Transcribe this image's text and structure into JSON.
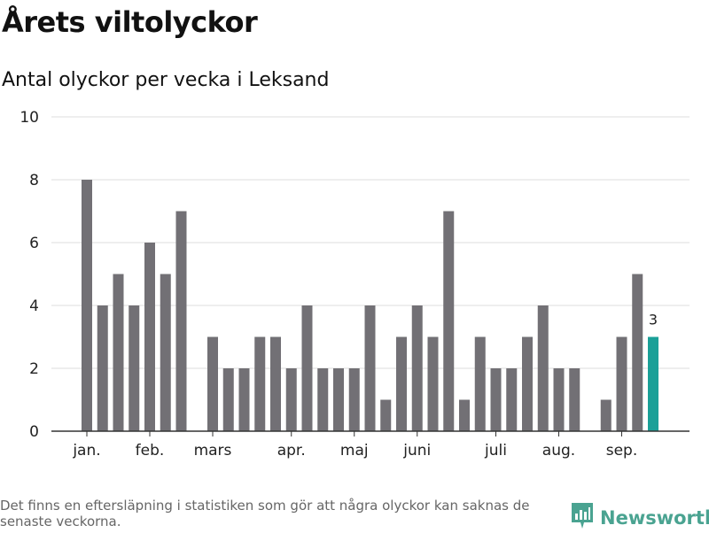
{
  "header": {
    "title": "Årets viltolyckor",
    "subtitle": "Antal olyckor per vecka i Leksand"
  },
  "footer": {
    "note": "Det finns en eftersläpning i statistiken som gör att några olyckor kan saknas de senaste veckorna.",
    "brand": "Newsworthy",
    "brand_icon": "newsworthy-logo-icon"
  },
  "colors": {
    "bar": "#727075",
    "highlight": "#1ba098",
    "grid": "#dddddd",
    "axis": "#333333",
    "brand": "#4aa391"
  },
  "chart_data": {
    "type": "bar",
    "title": "",
    "xlabel": "",
    "ylabel": "",
    "ylim": [
      0,
      10
    ],
    "yticks": [
      0,
      2,
      4,
      6,
      8,
      10
    ],
    "grid": true,
    "week_labels": [
      "jan.",
      "feb.",
      "mars",
      "apr.",
      "maj",
      "juni",
      "juli",
      "aug.",
      "sep."
    ],
    "week_label_index": [
      0,
      4,
      8,
      13,
      17,
      21,
      26,
      30,
      34
    ],
    "values": [
      8,
      4,
      5,
      4,
      6,
      5,
      7,
      0,
      3,
      2,
      2,
      3,
      3,
      2,
      4,
      2,
      2,
      2,
      4,
      1,
      3,
      4,
      3,
      7,
      1,
      3,
      2,
      2,
      3,
      4,
      2,
      2,
      0,
      1,
      3,
      5,
      3
    ],
    "highlight_index": 36,
    "highlight_label": "3"
  }
}
